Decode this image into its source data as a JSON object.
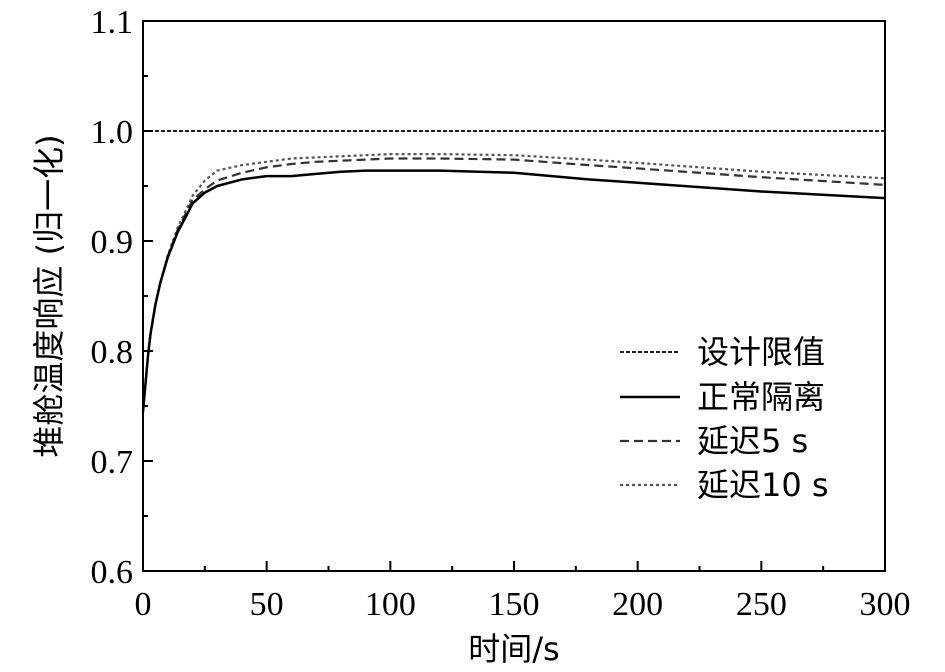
{
  "chart_data": {
    "type": "line",
    "title": "",
    "xlabel": "时间/s",
    "ylabel": "堆舱温度响应 (归一化)",
    "xlim": [
      0,
      300
    ],
    "ylim": [
      0.6,
      1.1
    ],
    "x_ticks": [
      0,
      50,
      100,
      150,
      200,
      250,
      300
    ],
    "x_tick_labels": [
      "0",
      "50",
      "100",
      "150",
      "200",
      "250",
      "300"
    ],
    "y_ticks": [
      0.6,
      0.7,
      0.8,
      0.9,
      1.0,
      1.1
    ],
    "y_tick_labels": [
      "0.6",
      "0.7",
      "0.8",
      "0.9",
      "1.0",
      "1.1"
    ],
    "grid": false,
    "legend_position": "bottom-right",
    "series": [
      {
        "name": "设计限值",
        "style": "short-dash",
        "color": "#000000",
        "x": [
          0,
          300
        ],
        "y": [
          1.0,
          1.0
        ]
      },
      {
        "name": "正常隔离",
        "style": "solid",
        "color": "#000000",
        "x": [
          0,
          1,
          2,
          3,
          5,
          7,
          10,
          14,
          18,
          20,
          25,
          30,
          40,
          50,
          60,
          70,
          80,
          90,
          100,
          120,
          150,
          180,
          200,
          250,
          300
        ],
        "y": [
          0.745,
          0.77,
          0.795,
          0.815,
          0.842,
          0.862,
          0.885,
          0.908,
          0.925,
          0.934,
          0.944,
          0.95,
          0.956,
          0.959,
          0.959,
          0.961,
          0.963,
          0.964,
          0.964,
          0.964,
          0.962,
          0.956,
          0.953,
          0.945,
          0.939
        ]
      },
      {
        "name": "延迟5 s",
        "style": "dash",
        "color": "#333333",
        "x": [
          0,
          1,
          2,
          3,
          5,
          7,
          10,
          14,
          18,
          20,
          25,
          30,
          40,
          50,
          60,
          70,
          80,
          90,
          100,
          120,
          150,
          180,
          200,
          250,
          300
        ],
        "y": [
          0.745,
          0.77,
          0.795,
          0.815,
          0.842,
          0.862,
          0.886,
          0.91,
          0.928,
          0.937,
          0.947,
          0.955,
          0.962,
          0.967,
          0.97,
          0.972,
          0.973,
          0.974,
          0.975,
          0.975,
          0.974,
          0.969,
          0.966,
          0.958,
          0.951
        ]
      },
      {
        "name": "延迟10 s",
        "style": "dot",
        "color": "#555555",
        "x": [
          0,
          1,
          2,
          3,
          5,
          7,
          10,
          14,
          18,
          20,
          25,
          30,
          40,
          50,
          60,
          70,
          80,
          90,
          100,
          120,
          150,
          180,
          200,
          250,
          300
        ],
        "y": [
          0.745,
          0.77,
          0.795,
          0.815,
          0.842,
          0.862,
          0.887,
          0.912,
          0.931,
          0.941,
          0.955,
          0.964,
          0.969,
          0.972,
          0.975,
          0.976,
          0.977,
          0.978,
          0.979,
          0.979,
          0.978,
          0.974,
          0.971,
          0.963,
          0.957
        ]
      }
    ]
  }
}
